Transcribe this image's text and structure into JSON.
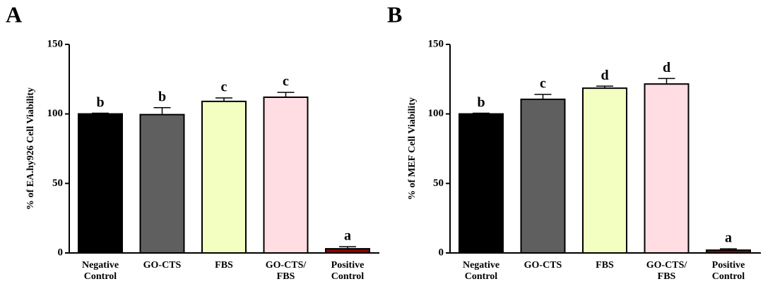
{
  "chart_data": [
    {
      "type": "bar",
      "panel_label": "A",
      "ylabel": "% of EA.hy926 Cell Viability",
      "categories": [
        "Negative\nControl",
        "GO-CTS",
        "FBS",
        "GO-CTS/\nFBS",
        "Positive\nControl"
      ],
      "values": [
        100,
        99.5,
        109,
        112,
        3
      ],
      "errors": [
        0.5,
        5,
        2.5,
        3.5,
        1.5
      ],
      "annotations": [
        "b",
        "b",
        "c",
        "c",
        "a"
      ],
      "colors": [
        "#000000",
        "#5f5f5f",
        "#f3ffc0",
        "#ffdde2",
        "#8b0000"
      ],
      "ylim": [
        0,
        150
      ],
      "yticks": [
        0,
        50,
        100,
        150
      ]
    },
    {
      "type": "bar",
      "panel_label": "B",
      "ylabel": "% of MEF Cell Viability",
      "categories": [
        "Negative\nControl",
        "GO-CTS",
        "FBS",
        "GO-CTS/\nFBS",
        "Positive\nControl"
      ],
      "values": [
        100,
        110.5,
        118.5,
        121.5,
        2
      ],
      "errors": [
        0.5,
        3.5,
        1.5,
        4,
        1
      ],
      "annotations": [
        "b",
        "c",
        "d",
        "d",
        "a"
      ],
      "colors": [
        "#000000",
        "#5f5f5f",
        "#f3ffc0",
        "#ffdde2",
        "#8b0000"
      ],
      "ylim": [
        0,
        150
      ],
      "yticks": [
        0,
        50,
        100,
        150
      ]
    }
  ]
}
